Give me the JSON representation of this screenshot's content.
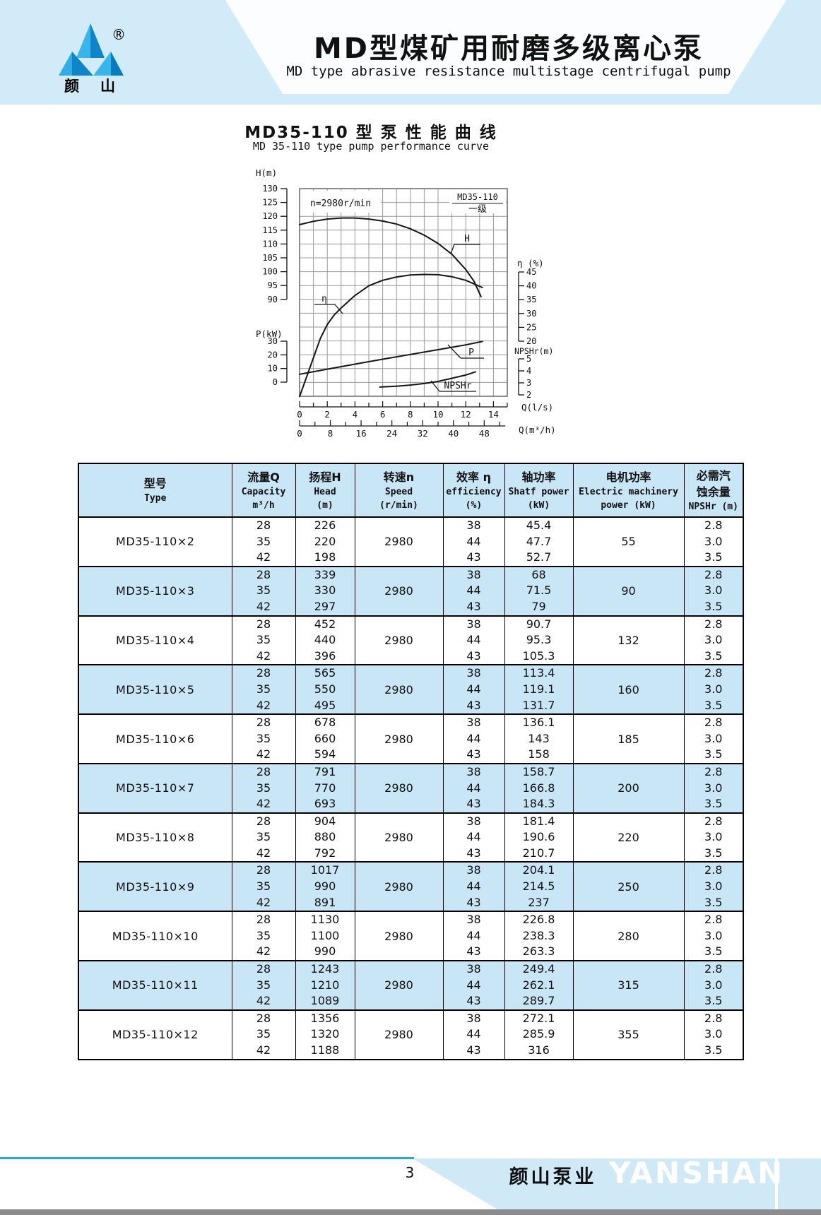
{
  "header": {
    "title_cn": "MD型煤矿用耐磨多级离心泵",
    "title_en": "MD type abrasive resistance multistage centrifugal pump",
    "logo_text": "颜山",
    "reg_mark": "®"
  },
  "chart_data": {
    "type": "line",
    "title": "MD35-110 型 泵 性 能 曲 线",
    "subtitle": "MD 35-110 type pump performance curve",
    "annotation": "n=2980r/min",
    "legend": {
      "model": "MD35-110",
      "stage": "一级"
    },
    "axes": {
      "x": {
        "label": "Q(l/s)",
        "min": 0,
        "max": 15,
        "ticks": [
          0,
          2,
          4,
          6,
          8,
          10,
          12,
          14
        ]
      },
      "x2": {
        "label": "Q(m³/h)",
        "min": 0,
        "max": 48,
        "ticks": [
          0,
          8,
          16,
          24,
          32,
          40,
          48
        ]
      },
      "h": {
        "label": "H(m)",
        "min": 90,
        "max": 130,
        "ticks": [
          130,
          125,
          120,
          115,
          110,
          105,
          100,
          95,
          90
        ]
      },
      "p": {
        "label": "P(kW)",
        "min": 0,
        "max": 30,
        "ticks": [
          30,
          20,
          10,
          0
        ]
      },
      "eta": {
        "label": "η (%)",
        "min": 20,
        "max": 45,
        "ticks": [
          45,
          40,
          35,
          30,
          25,
          20
        ]
      },
      "npshr": {
        "label": "NPSHr(m)",
        "min": 2,
        "max": 5,
        "ticks": [
          5,
          4,
          3,
          2
        ]
      }
    },
    "series": [
      {
        "name": "H",
        "axis": "h",
        "points": [
          [
            0,
            117
          ],
          [
            1,
            118.2
          ],
          [
            2,
            119
          ],
          [
            3,
            119.4
          ],
          [
            4,
            119.4
          ],
          [
            5,
            119
          ],
          [
            6,
            118.3
          ],
          [
            7,
            117.2
          ],
          [
            8,
            115.5
          ],
          [
            9,
            113.2
          ],
          [
            10,
            110.2
          ],
          [
            11,
            106.3
          ],
          [
            12,
            100.8
          ],
          [
            12.6,
            96.5
          ],
          [
            13.1,
            91
          ]
        ]
      },
      {
        "name": "η",
        "axis": "eta",
        "points": [
          [
            0,
            0
          ],
          [
            0.5,
            7
          ],
          [
            1,
            14
          ],
          [
            1.5,
            21
          ],
          [
            2,
            26
          ],
          [
            2.5,
            29.5
          ],
          [
            3,
            32
          ],
          [
            4,
            36.5
          ],
          [
            5,
            40
          ],
          [
            6,
            42
          ],
          [
            7,
            43.2
          ],
          [
            8,
            43.9
          ],
          [
            9,
            44.1
          ],
          [
            10,
            44
          ],
          [
            11,
            43.3
          ],
          [
            12,
            42
          ],
          [
            13.2,
            39.4
          ]
        ]
      },
      {
        "name": "P",
        "axis": "p",
        "points": [
          [
            0,
            5.8
          ],
          [
            2,
            9.5
          ],
          [
            4,
            13.2
          ],
          [
            6,
            16.8
          ],
          [
            8,
            20.3
          ],
          [
            10,
            23.8
          ],
          [
            12,
            27.3
          ],
          [
            13.2,
            29.8
          ]
        ]
      },
      {
        "name": "NPSHr",
        "axis": "npshr",
        "points": [
          [
            5.8,
            2.65
          ],
          [
            7,
            2.72
          ],
          [
            8,
            2.82
          ],
          [
            9,
            2.95
          ],
          [
            10,
            3.12
          ],
          [
            11,
            3.38
          ],
          [
            12,
            3.65
          ],
          [
            12.7,
            3.92
          ]
        ]
      }
    ]
  },
  "table": {
    "headers": {
      "type_cn": "型号",
      "type_en": "Type",
      "capacity_cn": "流量Q",
      "capacity_en": "Capacity",
      "capacity_unit": "m³/h",
      "head_cn": "扬程H",
      "head_en": "Head",
      "head_unit": "(m)",
      "speed_cn": "转速n",
      "speed_en": "Speed",
      "speed_unit": "(r/min)",
      "eff_cn": "效率 η",
      "eff_en": "efficiency",
      "eff_unit": "(%)",
      "shaft_cn": "轴功率",
      "shaft_en": "Shatf power",
      "shaft_unit": "(kW)",
      "motor_cn": "电机功率",
      "motor_en": "Electric machinery",
      "motor_unit": "power  (kW)",
      "npshr_cn1": "必需汽",
      "npshr_cn2": "蚀余量",
      "npshr_en": "NPSHr (m)"
    },
    "rows": [
      {
        "type": "MD35-110×2",
        "capacity": [
          "28",
          "35",
          "42"
        ],
        "head": [
          "226",
          "220",
          "198"
        ],
        "speed": "2980",
        "efficiency": [
          "38",
          "44",
          "43"
        ],
        "shaft_power": [
          "45.4",
          "47.7",
          "52.7"
        ],
        "motor_power": "55",
        "npshr": [
          "2.8",
          "3.0",
          "3.5"
        ]
      },
      {
        "type": "MD35-110×3",
        "capacity": [
          "28",
          "35",
          "42"
        ],
        "head": [
          "339",
          "330",
          "297"
        ],
        "speed": "2980",
        "efficiency": [
          "38",
          "44",
          "43"
        ],
        "shaft_power": [
          "68",
          "71.5",
          "79"
        ],
        "motor_power": "90",
        "npshr": [
          "2.8",
          "3.0",
          "3.5"
        ]
      },
      {
        "type": "MD35-110×4",
        "capacity": [
          "28",
          "35",
          "42"
        ],
        "head": [
          "452",
          "440",
          "396"
        ],
        "speed": "2980",
        "efficiency": [
          "38",
          "44",
          "43"
        ],
        "shaft_power": [
          "90.7",
          "95.3",
          "105.3"
        ],
        "motor_power": "132",
        "npshr": [
          "2.8",
          "3.0",
          "3.5"
        ]
      },
      {
        "type": "MD35-110×5",
        "capacity": [
          "28",
          "35",
          "42"
        ],
        "head": [
          "565",
          "550",
          "495"
        ],
        "speed": "2980",
        "efficiency": [
          "38",
          "44",
          "43"
        ],
        "shaft_power": [
          "113.4",
          "119.1",
          "131.7"
        ],
        "motor_power": "160",
        "npshr": [
          "2.8",
          "3.0",
          "3.5"
        ]
      },
      {
        "type": "MD35-110×6",
        "capacity": [
          "28",
          "35",
          "42"
        ],
        "head": [
          "678",
          "660",
          "594"
        ],
        "speed": "2980",
        "efficiency": [
          "38",
          "44",
          "43"
        ],
        "shaft_power": [
          "136.1",
          "143",
          "158"
        ],
        "motor_power": "185",
        "npshr": [
          "2.8",
          "3.0",
          "3.5"
        ]
      },
      {
        "type": "MD35-110×7",
        "capacity": [
          "28",
          "35",
          "42"
        ],
        "head": [
          "791",
          "770",
          "693"
        ],
        "speed": "2980",
        "efficiency": [
          "38",
          "44",
          "43"
        ],
        "shaft_power": [
          "158.7",
          "166.8",
          "184.3"
        ],
        "motor_power": "200",
        "npshr": [
          "2.8",
          "3.0",
          "3.5"
        ]
      },
      {
        "type": "MD35-110×8",
        "capacity": [
          "28",
          "35",
          "42"
        ],
        "head": [
          "904",
          "880",
          "792"
        ],
        "speed": "2980",
        "efficiency": [
          "38",
          "44",
          "43"
        ],
        "shaft_power": [
          "181.4",
          "190.6",
          "210.7"
        ],
        "motor_power": "220",
        "npshr": [
          "2.8",
          "3.0",
          "3.5"
        ]
      },
      {
        "type": "MD35-110×9",
        "capacity": [
          "28",
          "35",
          "42"
        ],
        "head": [
          "1017",
          "990",
          "891"
        ],
        "speed": "2980",
        "efficiency": [
          "38",
          "44",
          "43"
        ],
        "shaft_power": [
          "204.1",
          "214.5",
          "237"
        ],
        "motor_power": "250",
        "npshr": [
          "2.8",
          "3.0",
          "3.5"
        ]
      },
      {
        "type": "MD35-110×10",
        "capacity": [
          "28",
          "35",
          "42"
        ],
        "head": [
          "1130",
          "1100",
          "990"
        ],
        "speed": "2980",
        "efficiency": [
          "38",
          "44",
          "43"
        ],
        "shaft_power": [
          "226.8",
          "238.3",
          "263.3"
        ],
        "motor_power": "280",
        "npshr": [
          "2.8",
          "3.0",
          "3.5"
        ]
      },
      {
        "type": "MD35-110×11",
        "capacity": [
          "28",
          "35",
          "42"
        ],
        "head": [
          "1243",
          "1210",
          "1089"
        ],
        "speed": "2980",
        "efficiency": [
          "38",
          "44",
          "43"
        ],
        "shaft_power": [
          "249.4",
          "262.1",
          "289.7"
        ],
        "motor_power": "315",
        "npshr": [
          "2.8",
          "3.0",
          "3.5"
        ]
      },
      {
        "type": "MD35-110×12",
        "capacity": [
          "28",
          "35",
          "42"
        ],
        "head": [
          "1356",
          "1320",
          "1188"
        ],
        "speed": "2980",
        "efficiency": [
          "38",
          "44",
          "43"
        ],
        "shaft_power": [
          "272.1",
          "285.9",
          "316"
        ],
        "motor_power": "355",
        "npshr": [
          "2.8",
          "3.0",
          "3.5"
        ]
      }
    ]
  },
  "footer": {
    "page_number": "3",
    "company_cn": "颜山泵业",
    "brand": "YANSHAN"
  },
  "colors": {
    "band_blue": "#d2ebf8",
    "table_blue": "#c8e6f6",
    "accent_cyan": "#2ba7d4",
    "logo_blue": "#129bd9",
    "gray_bar": "#8c8c8c"
  }
}
